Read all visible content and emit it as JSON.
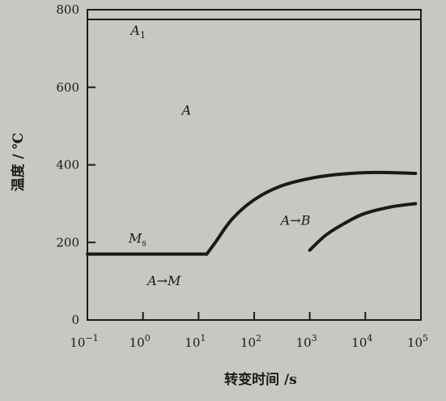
{
  "chart_data": {
    "type": "line",
    "title": "",
    "xlabel": "转变时间 /s",
    "ylabel": "温度 / ℃",
    "xscale": "log",
    "xlim": [
      0.1,
      100000
    ],
    "ylim": [
      0,
      800
    ],
    "grid": false,
    "x_ticks": [
      {
        "base": "10",
        "exp": "−1",
        "value": 0.1
      },
      {
        "base": "10",
        "exp": "0",
        "value": 1
      },
      {
        "base": "10",
        "exp": "1",
        "value": 10
      },
      {
        "base": "10",
        "exp": "2",
        "value": 100
      },
      {
        "base": "10",
        "exp": "3",
        "value": 1000
      },
      {
        "base": "10",
        "exp": "4",
        "value": 10000
      },
      {
        "base": "10",
        "exp": "5",
        "value": 100000
      }
    ],
    "y_ticks": [
      {
        "label": "0",
        "value": 0
      },
      {
        "label": "200",
        "value": 200
      },
      {
        "label": "400",
        "value": 400
      },
      {
        "label": "600",
        "value": 600
      },
      {
        "label": "800",
        "value": 800
      }
    ],
    "series": [
      {
        "id": "a1-line",
        "x": [
          0.1,
          100000
        ],
        "y": [
          775,
          775
        ]
      },
      {
        "id": "ms-line",
        "x": [
          0.1,
          14
        ],
        "y": [
          170,
          170
        ]
      },
      {
        "id": "bainite-start",
        "x": [
          14,
          20,
          40,
          100,
          300,
          1000,
          3000,
          10000,
          30000,
          80000
        ],
        "y": [
          170,
          200,
          260,
          310,
          345,
          365,
          375,
          380,
          380,
          378
        ]
      },
      {
        "id": "bainite-finish",
        "x": [
          1000,
          2000,
          5000,
          10000,
          30000,
          80000
        ],
        "y": [
          180,
          220,
          255,
          275,
          292,
          300
        ]
      }
    ],
    "annotations": [
      {
        "id": "a1",
        "main": "A",
        "sub": "1",
        "x": 0.6,
        "y": 735
      },
      {
        "id": "austenite",
        "main": "A",
        "sub": "",
        "x": 5,
        "y": 530
      },
      {
        "id": "ms",
        "main": "M",
        "sub": "s",
        "x": 0.55,
        "y": 200
      },
      {
        "id": "a-to-b",
        "main": "A→B",
        "sub": "",
        "x": 300,
        "y": 245
      },
      {
        "id": "a-to-m",
        "main": "A→M",
        "sub": "",
        "x": 1.2,
        "y": 90
      }
    ]
  }
}
